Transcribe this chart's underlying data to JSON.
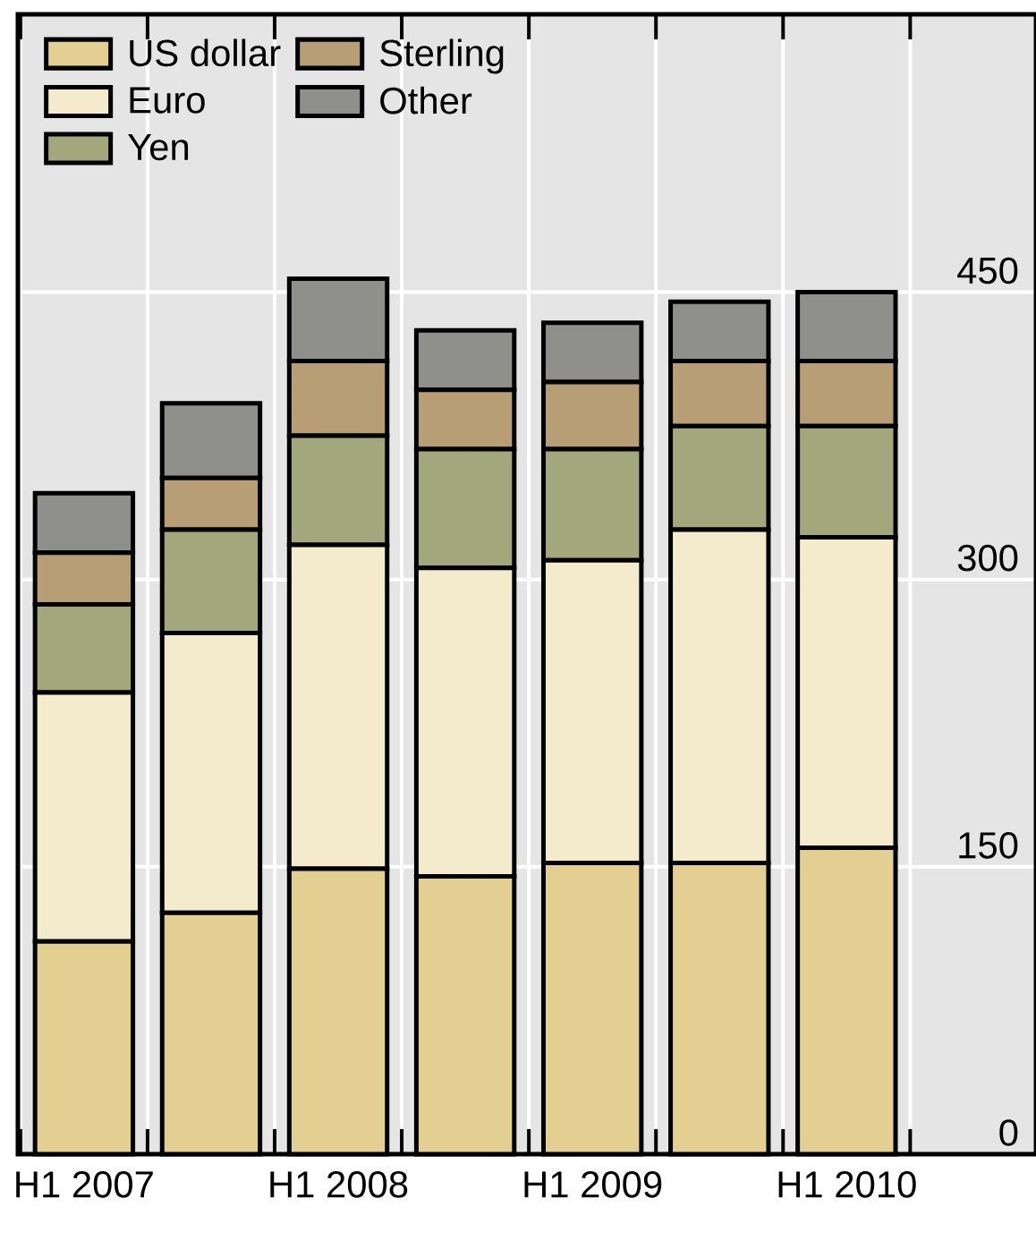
{
  "chart_data": {
    "type": "bar",
    "stacked": true,
    "categories": [
      "H1 2007",
      null,
      "H1 2008",
      null,
      "H1 2009",
      null,
      "H1 2010"
    ],
    "series": [
      {
        "name": "US dollar",
        "color": "#e3cf92",
        "values": [
          111,
          126,
          149,
          145,
          152,
          152,
          160
        ]
      },
      {
        "name": "Euro",
        "color": "#f3ebcb",
        "values": [
          130,
          146,
          169,
          161,
          158,
          174,
          162
        ]
      },
      {
        "name": "Yen",
        "color": "#a3a87c",
        "values": [
          46,
          54,
          57,
          62,
          58,
          54,
          58
        ]
      },
      {
        "name": "Sterling",
        "color": "#b89e74",
        "values": [
          27,
          27,
          39,
          31,
          35,
          34,
          34
        ]
      },
      {
        "name": "Other",
        "color": "#8f908c",
        "values": [
          31,
          39,
          43,
          31,
          31,
          31,
          36
        ]
      }
    ],
    "ylim": [
      0,
      595
    ],
    "yticks": [
      0,
      150,
      300,
      450
    ],
    "grid": true,
    "legend": "top left"
  }
}
